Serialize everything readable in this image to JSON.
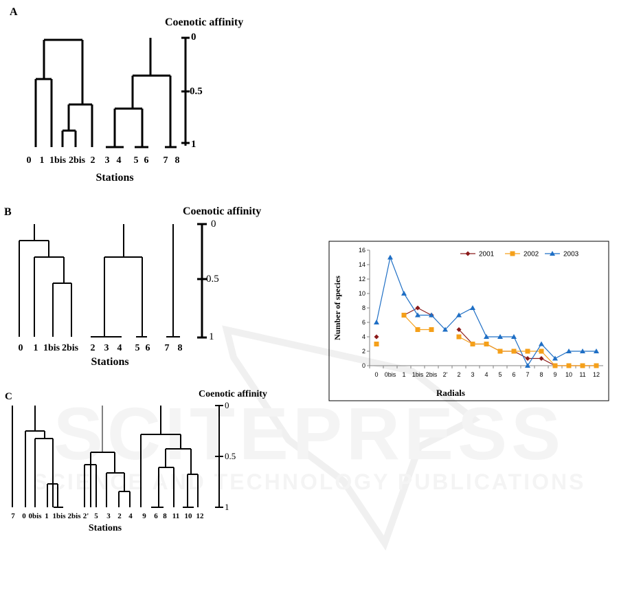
{
  "panels": {
    "a": {
      "letter": "A",
      "title": "Coenotic affinity",
      "xlabel": "Stations",
      "ticks": [
        "0",
        "0.5",
        "1"
      ],
      "stations": [
        "0",
        "1",
        "1bis",
        "2bis",
        "2",
        "3",
        "4",
        "5",
        "6",
        "7",
        "8"
      ]
    },
    "b": {
      "letter": "B",
      "title": "Coenotic affinity",
      "xlabel": "Stations",
      "ticks": [
        "0",
        "0.5",
        "1"
      ],
      "stations": [
        "0",
        "1",
        "1bis",
        "2bis",
        "2",
        "3",
        "4",
        "5",
        "6",
        "7",
        "8"
      ]
    },
    "c": {
      "letter": "C",
      "title": "Coenotic affinity",
      "xlabel": "Stations",
      "ticks": [
        "0",
        "0.5",
        "1"
      ],
      "stations": [
        "7",
        "0",
        "0bis",
        "1",
        "1bis",
        "2bis",
        "2'",
        "5",
        "3",
        "2",
        "4",
        "9",
        "6",
        "8",
        "11",
        "10",
        "12"
      ]
    }
  },
  "watermark": {
    "big": "SCITEPRESS",
    "small": "SCIENCE AND TECHNOLOGY PUBLICATIONS"
  },
  "chart_data": {
    "type": "line",
    "title": "",
    "xlabel": "Radials",
    "ylabel": "Number of species",
    "categories": [
      "0",
      "0bis",
      "1",
      "1bis",
      "2bis",
      "2'",
      "2",
      "3",
      "4",
      "5",
      "6",
      "7",
      "8",
      "9",
      "10",
      "11",
      "12"
    ],
    "ylim": [
      0,
      16
    ],
    "yticks": [
      "0",
      "2",
      "4",
      "6",
      "8",
      "10",
      "12",
      "14",
      "16"
    ],
    "legend_position": "top-right",
    "series": [
      {
        "name": "2001",
        "color": "#8b1a1a",
        "marker": "diamond",
        "values": [
          4,
          null,
          7,
          8,
          7,
          null,
          5,
          3,
          3,
          2,
          2,
          1,
          1,
          0,
          0,
          0,
          0
        ]
      },
      {
        "name": "2002",
        "color": "#f5a01a",
        "marker": "square",
        "values": [
          3,
          null,
          7,
          5,
          5,
          null,
          4,
          3,
          3,
          2,
          2,
          2,
          2,
          0,
          0,
          0,
          0
        ]
      },
      {
        "name": "2003",
        "color": "#1f6fc5",
        "marker": "triangle",
        "values": [
          6,
          15,
          10,
          7,
          7,
          5,
          7,
          8,
          4,
          4,
          4,
          0,
          3,
          1,
          2,
          2,
          2
        ]
      }
    ]
  }
}
